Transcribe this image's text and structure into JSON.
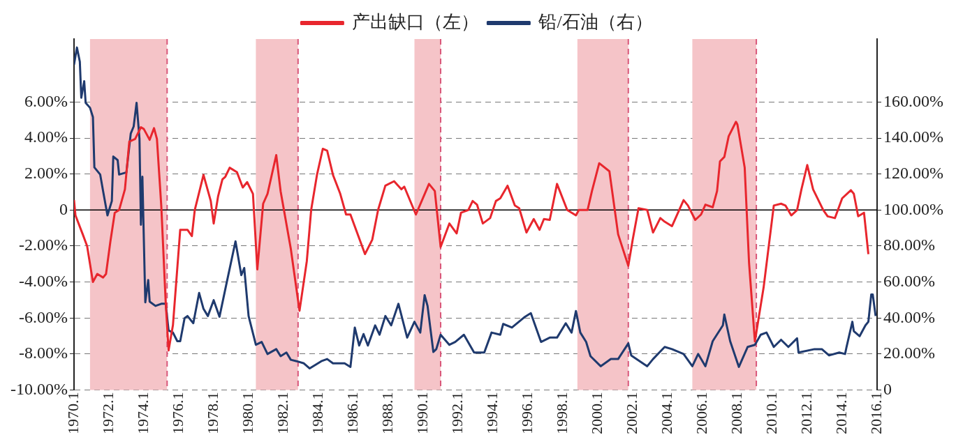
{
  "chart_data": {
    "type": "line",
    "legend": "top",
    "grid": "y",
    "line_style": "solid",
    "marker": "none",
    "xlim": [
      "1970-01",
      "2016-01"
    ],
    "xticks": [
      {
        "value": "1970-01",
        "label": "1970.1"
      },
      {
        "value": "1972-01",
        "label": "1972.1"
      },
      {
        "value": "1974-01",
        "label": "1974.1"
      },
      {
        "value": "1976-01",
        "label": "1976.1"
      },
      {
        "value": "1978-01",
        "label": "1978.1"
      },
      {
        "value": "1980-01",
        "label": "1980.1"
      },
      {
        "value": "1982-01",
        "label": "1982.1"
      },
      {
        "value": "1984-01",
        "label": "1984.1"
      },
      {
        "value": "1986-01",
        "label": "1986.1"
      },
      {
        "value": "1988-01",
        "label": "1988.1"
      },
      {
        "value": "1990-01",
        "label": "1990.1"
      },
      {
        "value": "1992-01",
        "label": "1992.1"
      },
      {
        "value": "1994-01",
        "label": "1994.1"
      },
      {
        "value": "1996-01",
        "label": "1996.1"
      },
      {
        "value": "1998-01",
        "label": "1998.1"
      },
      {
        "value": "2000-01",
        "label": "2000.1"
      },
      {
        "value": "2002-01",
        "label": "2002.1"
      },
      {
        "value": "2004-01",
        "label": "2004.1"
      },
      {
        "value": "2006-01",
        "label": "2006.1"
      },
      {
        "value": "2008-01",
        "label": "2008.1"
      },
      {
        "value": "2010-01",
        "label": "2010.1"
      },
      {
        "value": "2012-01",
        "label": "2012.1"
      },
      {
        "value": "2014-01",
        "label": "2014.1"
      },
      {
        "value": "2016-01",
        "label": "2016.1"
      }
    ],
    "ylim": [
      -10,
      9.5
    ],
    "yticks": [
      {
        "value": -10,
        "label": "-10.00%"
      },
      {
        "value": -8,
        "label": "-8.00%"
      },
      {
        "value": -6,
        "label": "-6.00%"
      },
      {
        "value": -4,
        "label": "-4.00%"
      },
      {
        "value": -2,
        "label": "-2.00%"
      },
      0,
      {
        "value": 2,
        "label": "2.00%"
      },
      {
        "value": 4,
        "label": "4.00%"
      },
      {
        "value": 6,
        "label": "6.00%"
      }
    ],
    "y2lim": [
      0,
      195
    ],
    "y2ticks": [
      0,
      {
        "value": 20,
        "label": "20.00%"
      },
      {
        "value": 40,
        "label": "40.00%"
      },
      {
        "value": 60,
        "label": "60.00%"
      },
      {
        "value": 80,
        "label": "80.00%"
      },
      {
        "value": 100,
        "label": "100.00%"
      },
      {
        "value": 120,
        "label": "120.00%"
      },
      {
        "value": 140,
        "label": "140.00%"
      },
      {
        "value": 160,
        "label": "160.00%"
      }
    ],
    "bands": [
      {
        "axis": "x",
        "from": "1970-12",
        "to": "1975-05",
        "color": "#f5c4c8"
      },
      {
        "axis": "x",
        "from": "1980-06",
        "to": "1982-11",
        "color": "#f5c4c8"
      },
      {
        "axis": "x",
        "from": "1989-07",
        "to": "1991-01",
        "color": "#f5c4c8"
      },
      {
        "axis": "x",
        "from": "1998-11",
        "to": "2001-10",
        "color": "#f5c4c8"
      },
      {
        "axis": "x",
        "from": "2005-06",
        "to": "2009-02",
        "color": "#f5c4c8"
      }
    ],
    "ref_lines": [
      {
        "axis": "x",
        "value": "1975-05",
        "color": "#d9577a",
        "line_style": "dashed"
      },
      {
        "axis": "x",
        "value": "1982-11",
        "color": "#d9577a",
        "line_style": "dashed"
      },
      {
        "axis": "x",
        "value": "1991-01",
        "color": "#d9577a",
        "line_style": "dashed"
      },
      {
        "axis": "x",
        "value": "2001-10",
        "color": "#d9577a",
        "line_style": "dashed"
      },
      {
        "axis": "x",
        "value": "2009-02",
        "color": "#d9577a",
        "line_style": "dashed"
      },
      {
        "axis": "y",
        "value": 0,
        "color": "#000000",
        "line_style": "solid"
      }
    ],
    "series": [
      {
        "name": "产出缺口（左）",
        "color": "#e8262d",
        "x": [
          "1970-01",
          "1970-02",
          "1970-07",
          "1970-10",
          "1971-02",
          "1971-05",
          "1971-09",
          "1971-11",
          "1972-02",
          "1972-05",
          "1972-08",
          "1972-12",
          "1973-03",
          "1973-07",
          "1973-11",
          "1974-01",
          "1974-05",
          "1974-08",
          "1974-10",
          "1975-01",
          "1975-04",
          "1975-06",
          "1975-09",
          "1976-02",
          "1976-07",
          "1976-10",
          "1976-12",
          "1977-06",
          "1977-11",
          "1978-01",
          "1978-04",
          "1978-07",
          "1978-09",
          "1978-12",
          "1979-05",
          "1979-09",
          "1979-12",
          "1980-04",
          "1980-07",
          "1980-11",
          "1981-02",
          "1981-08",
          "1981-11",
          "1982-06",
          "1982-12",
          "1983-05",
          "1983-08",
          "1983-12",
          "1984-04",
          "1984-07",
          "1984-11",
          "1985-04",
          "1985-08",
          "1985-11",
          "1986-09",
          "1987-02",
          "1987-06",
          "1987-11",
          "1988-05",
          "1988-10",
          "1988-12",
          "1989-08",
          "1990-05",
          "1990-09",
          "1991-01",
          "1991-07",
          "1991-12",
          "1992-03",
          "1992-08",
          "1992-11",
          "1993-02",
          "1993-06",
          "1993-11",
          "1994-03",
          "1994-06",
          "1994-11",
          "1995-04",
          "1995-07",
          "1995-12",
          "1996-05",
          "1996-09",
          "1996-12",
          "1997-04",
          "1997-09",
          "1998-04",
          "1998-10",
          "1998-12",
          "1999-06",
          "1999-09",
          "2000-02",
          "2000-09",
          "2001-03",
          "2001-10",
          "2002-01",
          "2002-05",
          "2002-11",
          "2003-03",
          "2003-08",
          "2003-11",
          "2004-04",
          "2004-12",
          "2005-03",
          "2005-08",
          "2005-12",
          "2006-03",
          "2006-08",
          "2006-11",
          "2007-01",
          "2007-04",
          "2007-07",
          "2007-12",
          "2008-01",
          "2008-06",
          "2008-09",
          "2009-01",
          "2009-07",
          "2010-02",
          "2010-07",
          "2010-10",
          "2011-02",
          "2011-06",
          "2011-09",
          "2012-01",
          "2012-05",
          "2012-12",
          "2013-03",
          "2013-08",
          "2014-01",
          "2014-07",
          "2014-09",
          "2014-12",
          "2015-04",
          "2015-07"
        ],
        "values": [
          0.56,
          -0.3,
          -1.35,
          -2.0,
          -4.0,
          -3.55,
          -3.75,
          -3.55,
          -1.75,
          -0.15,
          0,
          1.15,
          3.8,
          3.95,
          4.6,
          4.5,
          3.9,
          4.55,
          3.95,
          0.2,
          -5.1,
          -7.8,
          -6.4,
          -1.1,
          -1.1,
          -1.45,
          0,
          1.95,
          0.5,
          -0.75,
          0.75,
          1.7,
          1.85,
          2.35,
          2.1,
          1.25,
          1.55,
          0.9,
          -3.3,
          0.35,
          0.9,
          3.05,
          1.05,
          -2.15,
          -5.6,
          -2.85,
          0,
          1.95,
          3.4,
          3.3,
          1.95,
          0.9,
          -0.25,
          -0.25,
          -2.45,
          -1.65,
          0,
          1.35,
          1.6,
          1.15,
          1.3,
          -0.25,
          1.45,
          1.05,
          -2.05,
          -0.75,
          -1.3,
          -0.15,
          0,
          0.5,
          0.3,
          -0.75,
          -0.45,
          0.5,
          0.65,
          1.35,
          0.25,
          0.1,
          -1.25,
          -0.5,
          -1.1,
          -0.5,
          -0.55,
          1.45,
          0,
          -0.3,
          0,
          0,
          1.05,
          2.6,
          2.15,
          -1.35,
          -3.1,
          -1.65,
          0.1,
          0,
          -1.25,
          -0.45,
          -0.65,
          -0.9,
          0.55,
          0.25,
          -0.55,
          -0.25,
          0.3,
          0.15,
          1.05,
          2.7,
          2.95,
          4.1,
          4.9,
          4.75,
          2.35,
          -2.95,
          -7.3,
          -4.3,
          0.25,
          0.35,
          0.25,
          -0.3,
          0,
          1.15,
          2.5,
          1.15,
          0,
          -0.35,
          -0.45,
          0.65,
          1.1,
          0.9,
          -0.35,
          -0.15,
          -2.45
        ]
      },
      {
        "name": "铅/石油（右）",
        "color": "#1f3a6e",
        "axis": "y2",
        "x": [
          "1970-01",
          "1970-03",
          "1970-05",
          "1970-06",
          "1970-08",
          "1970-09",
          "1970-12",
          "1971-02",
          "1971-03",
          "1971-07",
          "1971-09",
          "1971-12",
          "1972-03",
          "1972-04",
          "1972-07",
          "1972-08",
          "1973-01",
          "1973-04",
          "1973-06",
          "1973-08",
          "1973-10",
          "1973-11",
          "1973-12",
          "1974-02",
          "1974-04",
          "1974-05",
          "1974-09",
          "1975-01",
          "1975-04",
          "1975-06",
          "1975-09",
          "1975-12",
          "1976-02",
          "1976-05",
          "1976-07",
          "1976-11",
          "1977-03",
          "1977-06",
          "1977-09",
          "1978-01",
          "1978-05",
          "1978-10",
          "1979-04",
          "1979-08",
          "1979-10",
          "1980-01",
          "1980-06",
          "1980-10",
          "1981-02",
          "1981-08",
          "1981-11",
          "1982-03",
          "1982-06",
          "1982-10",
          "1983-03",
          "1983-07",
          "1984-03",
          "1984-07",
          "1984-11",
          "1985-07",
          "1985-11",
          "1986-02",
          "1986-05",
          "1986-08",
          "1986-11",
          "1987-04",
          "1987-07",
          "1987-11",
          "1988-03",
          "1988-08",
          "1989-02",
          "1989-07",
          "1989-11",
          "1990-02",
          "1990-04",
          "1990-08",
          "1990-10",
          "1991-01",
          "1991-07",
          "1991-11",
          "1992-05",
          "1992-12",
          "1993-07",
          "1993-12",
          "1994-06",
          "1994-08",
          "1995-02",
          "1995-11",
          "1996-03",
          "1996-10",
          "1997-04",
          "1997-09",
          "1998-03",
          "1998-07",
          "1998-10",
          "1999-01",
          "1999-05",
          "1999-08",
          "2000-03",
          "2000-10",
          "2001-03",
          "2001-10",
          "2001-12",
          "2002-11",
          "2003-03",
          "2003-11",
          "2004-04",
          "2004-12",
          "2005-06",
          "2005-10",
          "2006-03",
          "2006-08",
          "2007-03",
          "2007-04",
          "2007-08",
          "2008-02",
          "2008-08",
          "2009-01",
          "2009-05",
          "2009-09",
          "2010-02",
          "2010-07",
          "2010-12",
          "2011-06",
          "2011-07",
          "2012-06",
          "2012-11",
          "2013-04",
          "2013-11",
          "2014-03",
          "2014-04",
          "2014-08",
          "2014-09",
          "2015-01",
          "2015-05",
          "2015-07",
          "2015-09",
          "2015-10",
          "2015-12"
        ],
        "values": [
          180.8,
          190.3,
          182.4,
          162.4,
          171.6,
          159.6,
          156.8,
          151.6,
          123.7,
          119.7,
          110.5,
          97,
          105,
          129.7,
          127.7,
          119.7,
          120.9,
          142.5,
          146.4,
          159.6,
          139.7,
          91.8,
          118.5,
          48.7,
          61.1,
          49.1,
          46.7,
          47.9,
          47.9,
          33.1,
          31.9,
          27.1,
          27.1,
          39.9,
          41.1,
          37.1,
          53.9,
          45.1,
          41.1,
          49.9,
          40.7,
          59.9,
          82.6,
          63.8,
          67.8,
          41.1,
          25.1,
          26.7,
          20,
          22.7,
          18.8,
          20.8,
          16.8,
          16,
          14.8,
          12,
          16,
          17.2,
          14.8,
          14.8,
          12.8,
          34.7,
          24.7,
          31.1,
          24.7,
          35.9,
          30.7,
          41.1,
          35.9,
          47.9,
          29.1,
          37.9,
          31.9,
          52.7,
          46.7,
          21.1,
          22.7,
          30.7,
          25.1,
          26.7,
          30.7,
          20.8,
          20.8,
          31.9,
          30.7,
          36.7,
          34.7,
          40.7,
          42.7,
          26.7,
          29.1,
          29.1,
          37.1,
          31.9,
          43.9,
          31.9,
          26.7,
          18.8,
          13.2,
          17.2,
          17.2,
          25.9,
          19.2,
          13.2,
          17.2,
          23.9,
          22.7,
          20,
          13.2,
          20,
          13.2,
          27.1,
          35.9,
          41.9,
          27.1,
          12.8,
          23.9,
          25.1,
          30.7,
          31.9,
          23.9,
          27.9,
          23.9,
          28.7,
          20.8,
          22.7,
          22.7,
          19.2,
          20.8,
          20,
          23.9,
          37.9,
          32.7,
          29.9,
          35.9,
          37.9,
          53.1,
          53.1,
          41.1
        ]
      }
    ]
  }
}
